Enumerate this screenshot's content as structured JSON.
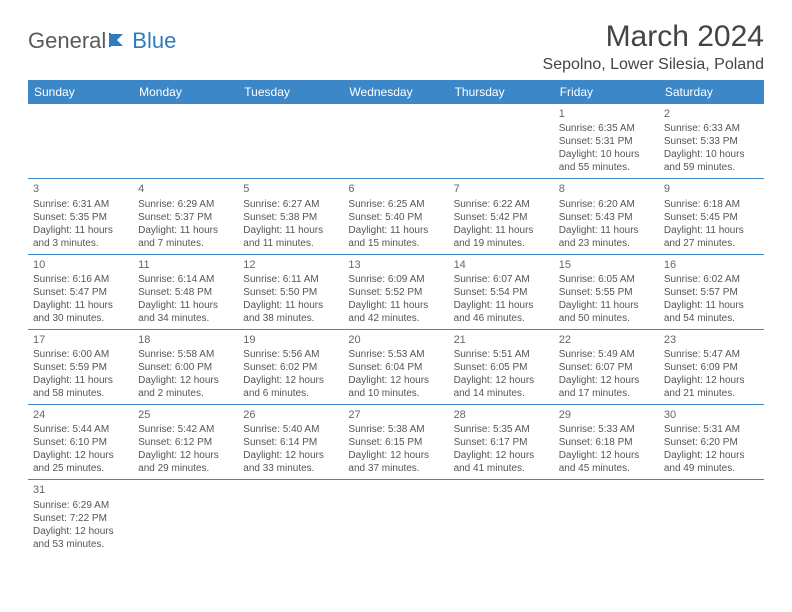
{
  "logo": {
    "text1": "General",
    "text2": "Blue"
  },
  "title": "March 2024",
  "location": "Sepolno, Lower Silesia, Poland",
  "weekdays": [
    "Sunday",
    "Monday",
    "Tuesday",
    "Wednesday",
    "Thursday",
    "Friday",
    "Saturday"
  ],
  "colors": {
    "header_bg": "#3b87c8",
    "header_fg": "#ffffff",
    "rule": "#3b87c8",
    "text": "#555555"
  },
  "weeks": [
    [
      null,
      null,
      null,
      null,
      null,
      {
        "d": "1",
        "sr": "6:35 AM",
        "ss": "5:31 PM",
        "dl1": "10 hours",
        "dl2": "and 55 minutes."
      },
      {
        "d": "2",
        "sr": "6:33 AM",
        "ss": "5:33 PM",
        "dl1": "10 hours",
        "dl2": "and 59 minutes."
      }
    ],
    [
      {
        "d": "3",
        "sr": "6:31 AM",
        "ss": "5:35 PM",
        "dl1": "11 hours",
        "dl2": "and 3 minutes."
      },
      {
        "d": "4",
        "sr": "6:29 AM",
        "ss": "5:37 PM",
        "dl1": "11 hours",
        "dl2": "and 7 minutes."
      },
      {
        "d": "5",
        "sr": "6:27 AM",
        "ss": "5:38 PM",
        "dl1": "11 hours",
        "dl2": "and 11 minutes."
      },
      {
        "d": "6",
        "sr": "6:25 AM",
        "ss": "5:40 PM",
        "dl1": "11 hours",
        "dl2": "and 15 minutes."
      },
      {
        "d": "7",
        "sr": "6:22 AM",
        "ss": "5:42 PM",
        "dl1": "11 hours",
        "dl2": "and 19 minutes."
      },
      {
        "d": "8",
        "sr": "6:20 AM",
        "ss": "5:43 PM",
        "dl1": "11 hours",
        "dl2": "and 23 minutes."
      },
      {
        "d": "9",
        "sr": "6:18 AM",
        "ss": "5:45 PM",
        "dl1": "11 hours",
        "dl2": "and 27 minutes."
      }
    ],
    [
      {
        "d": "10",
        "sr": "6:16 AM",
        "ss": "5:47 PM",
        "dl1": "11 hours",
        "dl2": "and 30 minutes."
      },
      {
        "d": "11",
        "sr": "6:14 AM",
        "ss": "5:48 PM",
        "dl1": "11 hours",
        "dl2": "and 34 minutes."
      },
      {
        "d": "12",
        "sr": "6:11 AM",
        "ss": "5:50 PM",
        "dl1": "11 hours",
        "dl2": "and 38 minutes."
      },
      {
        "d": "13",
        "sr": "6:09 AM",
        "ss": "5:52 PM",
        "dl1": "11 hours",
        "dl2": "and 42 minutes."
      },
      {
        "d": "14",
        "sr": "6:07 AM",
        "ss": "5:54 PM",
        "dl1": "11 hours",
        "dl2": "and 46 minutes."
      },
      {
        "d": "15",
        "sr": "6:05 AM",
        "ss": "5:55 PM",
        "dl1": "11 hours",
        "dl2": "and 50 minutes."
      },
      {
        "d": "16",
        "sr": "6:02 AM",
        "ss": "5:57 PM",
        "dl1": "11 hours",
        "dl2": "and 54 minutes."
      }
    ],
    [
      {
        "d": "17",
        "sr": "6:00 AM",
        "ss": "5:59 PM",
        "dl1": "11 hours",
        "dl2": "and 58 minutes."
      },
      {
        "d": "18",
        "sr": "5:58 AM",
        "ss": "6:00 PM",
        "dl1": "12 hours",
        "dl2": "and 2 minutes."
      },
      {
        "d": "19",
        "sr": "5:56 AM",
        "ss": "6:02 PM",
        "dl1": "12 hours",
        "dl2": "and 6 minutes."
      },
      {
        "d": "20",
        "sr": "5:53 AM",
        "ss": "6:04 PM",
        "dl1": "12 hours",
        "dl2": "and 10 minutes."
      },
      {
        "d": "21",
        "sr": "5:51 AM",
        "ss": "6:05 PM",
        "dl1": "12 hours",
        "dl2": "and 14 minutes."
      },
      {
        "d": "22",
        "sr": "5:49 AM",
        "ss": "6:07 PM",
        "dl1": "12 hours",
        "dl2": "and 17 minutes."
      },
      {
        "d": "23",
        "sr": "5:47 AM",
        "ss": "6:09 PM",
        "dl1": "12 hours",
        "dl2": "and 21 minutes."
      }
    ],
    [
      {
        "d": "24",
        "sr": "5:44 AM",
        "ss": "6:10 PM",
        "dl1": "12 hours",
        "dl2": "and 25 minutes."
      },
      {
        "d": "25",
        "sr": "5:42 AM",
        "ss": "6:12 PM",
        "dl1": "12 hours",
        "dl2": "and 29 minutes."
      },
      {
        "d": "26",
        "sr": "5:40 AM",
        "ss": "6:14 PM",
        "dl1": "12 hours",
        "dl2": "and 33 minutes."
      },
      {
        "d": "27",
        "sr": "5:38 AM",
        "ss": "6:15 PM",
        "dl1": "12 hours",
        "dl2": "and 37 minutes."
      },
      {
        "d": "28",
        "sr": "5:35 AM",
        "ss": "6:17 PM",
        "dl1": "12 hours",
        "dl2": "and 41 minutes."
      },
      {
        "d": "29",
        "sr": "5:33 AM",
        "ss": "6:18 PM",
        "dl1": "12 hours",
        "dl2": "and 45 minutes."
      },
      {
        "d": "30",
        "sr": "5:31 AM",
        "ss": "6:20 PM",
        "dl1": "12 hours",
        "dl2": "and 49 minutes."
      }
    ],
    [
      {
        "d": "31",
        "sr": "6:29 AM",
        "ss": "7:22 PM",
        "dl1": "12 hours",
        "dl2": "and 53 minutes."
      },
      null,
      null,
      null,
      null,
      null,
      null
    ]
  ],
  "labels": {
    "sunrise_prefix": "Sunrise: ",
    "sunset_prefix": "Sunset: ",
    "daylight_prefix": "Daylight: "
  }
}
